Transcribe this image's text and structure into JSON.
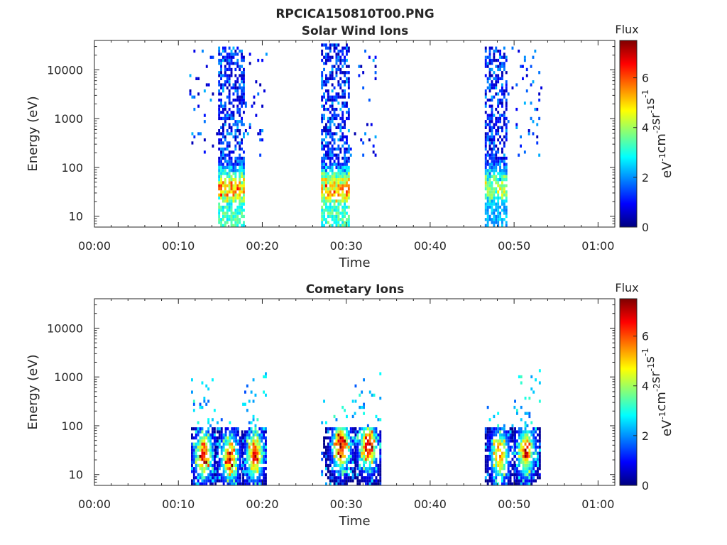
{
  "figure_title": "RPCICA150810T00.PNG",
  "colormap": [
    "#00007f",
    "#0000ff",
    "#007fff",
    "#00ffff",
    "#7fff7f",
    "#ffff00",
    "#ff7f00",
    "#ff0000",
    "#7f0000"
  ],
  "chart_data": [
    {
      "type": "heatmap",
      "title": "Solar Wind Ions",
      "xlabel": "Time",
      "ylabel": "Energy (eV)",
      "x_unit": "minutes",
      "xlim": [
        0,
        62
      ],
      "xticks": [
        0,
        10,
        20,
        30,
        40,
        50,
        60
      ],
      "xtick_labels": [
        "00:00",
        "00:10",
        "00:20",
        "00:30",
        "00:40",
        "00:50",
        "01:00"
      ],
      "y_scale": "log",
      "ylim": [
        6,
        40000
      ],
      "yticks": [
        10,
        100,
        1000,
        10000
      ],
      "ytick_labels": [
        "10",
        "100",
        "1000",
        "10000"
      ],
      "colorbar": {
        "label": "Flux",
        "unit": "eV-1cm-2sr-1s-1",
        "range": [
          0,
          7.5
        ],
        "ticks": [
          0,
          2,
          4,
          6
        ],
        "tick_labels": [
          "0",
          "2",
          "4",
          "6"
        ]
      },
      "bursts": [
        {
          "t_start": 11.3,
          "t_end": 20.5,
          "core_start": 14.5,
          "core_end": 17.7,
          "peak_flux": 4.5,
          "peak_energy": 35,
          "e_max": 30000
        },
        {
          "t_start": 27.0,
          "t_end": 33.5,
          "core_start": 27.0,
          "core_end": 30.3,
          "peak_flux": 4.6,
          "peak_energy": 35,
          "e_max": 35000
        },
        {
          "t_start": 46.5,
          "t_end": 53.2,
          "core_start": 46.5,
          "core_end": 49.0,
          "peak_flux": 3.2,
          "peak_energy": 40,
          "e_max": 30000
        }
      ]
    },
    {
      "type": "heatmap",
      "title": "Cometary Ions",
      "xlabel": "Time",
      "ylabel": "Energy (eV)",
      "x_unit": "minutes",
      "xlim": [
        0,
        62
      ],
      "xticks": [
        0,
        10,
        20,
        30,
        40,
        50,
        60
      ],
      "xtick_labels": [
        "00:00",
        "00:10",
        "00:20",
        "00:30",
        "00:40",
        "00:50",
        "01:00"
      ],
      "y_scale": "log",
      "ylim": [
        6,
        40000
      ],
      "yticks": [
        10,
        100,
        1000,
        10000
      ],
      "ytick_labels": [
        "10",
        "100",
        "1000",
        "10000"
      ],
      "colorbar": {
        "label": "Flux",
        "unit": "eV-1cm-2sr-1s-1",
        "range": [
          0,
          7.5
        ],
        "ticks": [
          0,
          2,
          4,
          6
        ],
        "tick_labels": [
          "0",
          "2",
          "4",
          "6"
        ]
      },
      "bursts": [
        {
          "t_start": 11.5,
          "t_end": 14.3,
          "peak_time": 12.9,
          "peak_flux": 6.6,
          "peak_energy": 25,
          "e_max": 1300
        },
        {
          "t_start": 14.3,
          "t_end": 17.6,
          "peak_time": 16.0,
          "peak_flux": 6.4,
          "peak_energy": 22,
          "e_max": 150
        },
        {
          "t_start": 17.6,
          "t_end": 20.5,
          "peak_time": 19.0,
          "peak_flux": 6.6,
          "peak_energy": 25,
          "e_max": 1300
        },
        {
          "t_start": 27.0,
          "t_end": 31.0,
          "peak_time": 29.3,
          "peak_flux": 7.3,
          "peak_energy": 38,
          "e_max": 350
        },
        {
          "t_start": 31.0,
          "t_end": 34.0,
          "peak_time": 32.5,
          "peak_flux": 7.2,
          "peak_energy": 38,
          "e_max": 1200
        },
        {
          "t_start": 46.5,
          "t_end": 50.0,
          "peak_time": 48.2,
          "peak_flux": 6.3,
          "peak_energy": 25,
          "e_max": 250
        },
        {
          "t_start": 50.0,
          "t_end": 53.0,
          "peak_time": 51.3,
          "peak_flux": 6.6,
          "peak_energy": 30,
          "e_max": 1500
        }
      ]
    }
  ]
}
